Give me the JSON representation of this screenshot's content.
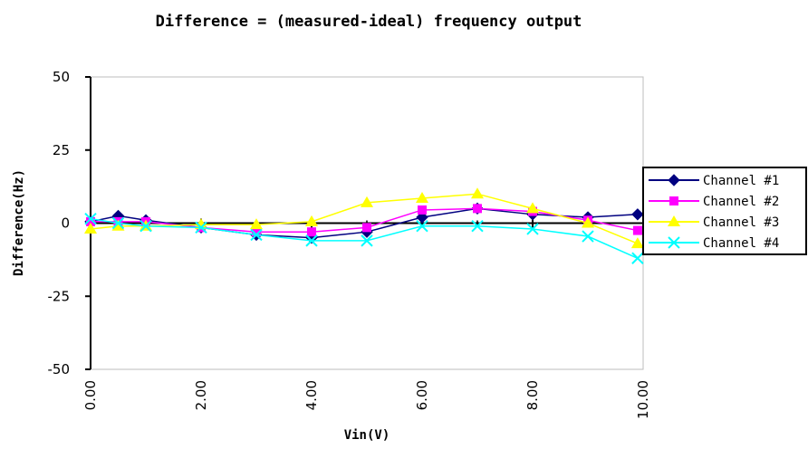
{
  "chart_data": {
    "type": "line",
    "title": "Difference = (measured-ideal) frequency output",
    "xlabel": "Vin(V)",
    "ylabel": "Difference(Hz)",
    "xlim": [
      0,
      10
    ],
    "ylim": [
      -50,
      50
    ],
    "x_ticks": [
      "0.00",
      "2.00",
      "4.00",
      "6.00",
      "8.00",
      "10.00"
    ],
    "y_ticks": [
      "50",
      "25",
      "0",
      "-25",
      "-50"
    ],
    "grid": false,
    "legend_position": "right",
    "series": [
      {
        "name": "Channel #1",
        "color": "#000080",
        "marker": "diamond",
        "x": [
          0,
          0.5,
          1,
          2,
          3,
          4,
          5,
          6,
          7,
          8,
          9,
          9.9
        ],
        "y": [
          0.5,
          2.5,
          1,
          -1.5,
          -4,
          -5,
          -3,
          2,
          5,
          3,
          2,
          3
        ]
      },
      {
        "name": "Channel #2",
        "color": "#ff00ff",
        "marker": "square",
        "x": [
          0,
          0.5,
          1,
          2,
          3,
          4,
          5,
          6,
          7,
          8,
          9,
          9.9
        ],
        "y": [
          0.5,
          0.5,
          0.5,
          -1.5,
          -3,
          -3,
          -1.5,
          4.5,
          5,
          4,
          1,
          -2.5
        ]
      },
      {
        "name": "Channel #3",
        "color": "#ffff00",
        "marker": "triangle",
        "x": [
          0,
          0.5,
          1,
          2,
          3,
          4,
          5,
          6,
          7,
          8,
          9,
          9.9
        ],
        "y": [
          -2,
          -1,
          -1,
          -0.5,
          -0.5,
          0.5,
          7,
          8.5,
          10,
          5,
          0,
          -7
        ]
      },
      {
        "name": "Channel #4",
        "color": "#00ffff",
        "marker": "x",
        "x": [
          0,
          0.5,
          1,
          2,
          3,
          4,
          5,
          6,
          7,
          8,
          9,
          9.9
        ],
        "y": [
          1.5,
          0,
          -1,
          -1.5,
          -4,
          -6,
          -6,
          -1,
          -1,
          -2,
          -4.5,
          -12
        ]
      }
    ]
  }
}
